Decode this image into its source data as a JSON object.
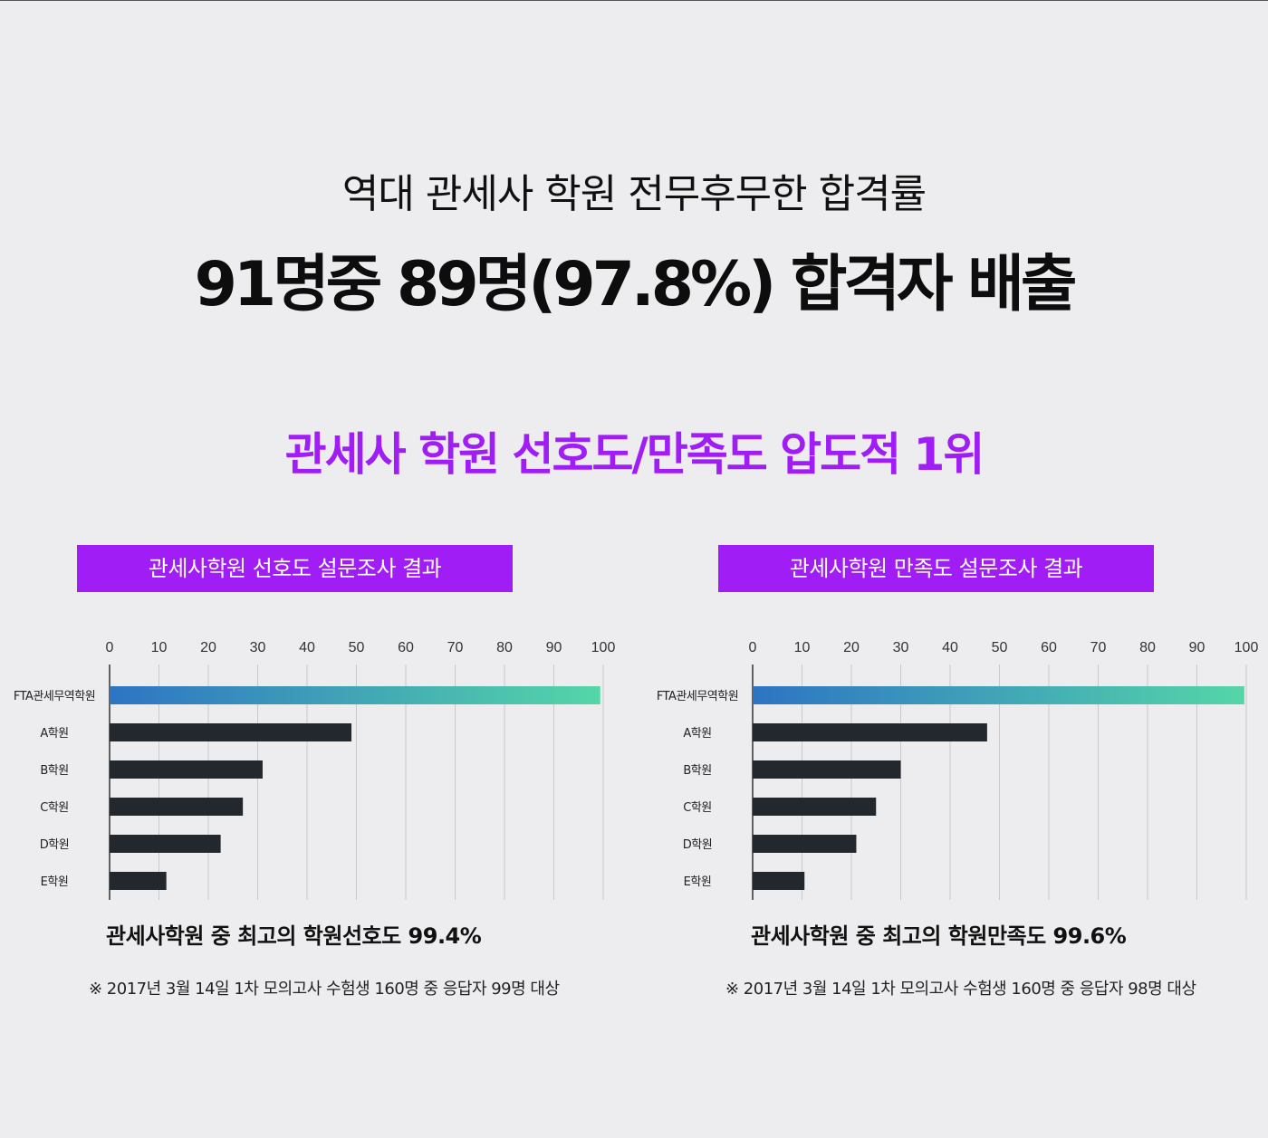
{
  "header": {
    "subtitle": "역대 관세사 학원 전무후무한 합격률",
    "headline": "91명중 89명(97.8%) 합격자 배출",
    "ranking_title": "관세사 학원 선호도/만족도 압도적 1위"
  },
  "colors": {
    "accent_purple": "#a01ef5",
    "bar_dark": "#23282e",
    "bar_gradient_start": "#2d74c4",
    "bar_gradient_end": "#55d6a8",
    "grid_line": "#c9c9cc"
  },
  "panels": [
    {
      "banner": "관세사학원 선호도 설문조사 결과",
      "summary": "관세사학원 중 최고의 학원선호도 99.4%",
      "note": "※ 2017년 3월 14일 1차 모의고사 수험생 160명 중 응답자 99명 대상"
    },
    {
      "banner": "관세사학원 만족도 설문조사 결과",
      "summary": "관세사학원 중 최고의 학원만족도 99.6%",
      "note": "※ 2017년 3월 14일 1차 모의고사 수험생 160명 중 응답자 98명 대상"
    }
  ],
  "chart_data": [
    {
      "type": "bar",
      "orientation": "horizontal",
      "title": "관세사학원 선호도 설문조사 결과",
      "categories": [
        "FTA관세무역학원",
        "A학원",
        "B학원",
        "C학원",
        "D학원",
        "E학원"
      ],
      "values": [
        99.4,
        49,
        31,
        27,
        22.5,
        11.5
      ],
      "xlim": [
        0,
        100
      ],
      "xticks": [
        "0",
        "10",
        "20",
        "30",
        "40",
        "50",
        "60",
        "70",
        "80",
        "90",
        "100"
      ],
      "xaxis_position": "top",
      "grid": true
    },
    {
      "type": "bar",
      "orientation": "horizontal",
      "title": "관세사학원 만족도 설문조사 결과",
      "categories": [
        "FTA관세무역학원",
        "A학원",
        "B학원",
        "C학원",
        "D학원",
        "E학원"
      ],
      "values": [
        99.6,
        47.5,
        30,
        25,
        21,
        10.5
      ],
      "xlim": [
        0,
        100
      ],
      "xticks": [
        "0",
        "10",
        "20",
        "30",
        "40",
        "50",
        "60",
        "70",
        "80",
        "90",
        "100"
      ],
      "xaxis_position": "top",
      "grid": true
    }
  ]
}
